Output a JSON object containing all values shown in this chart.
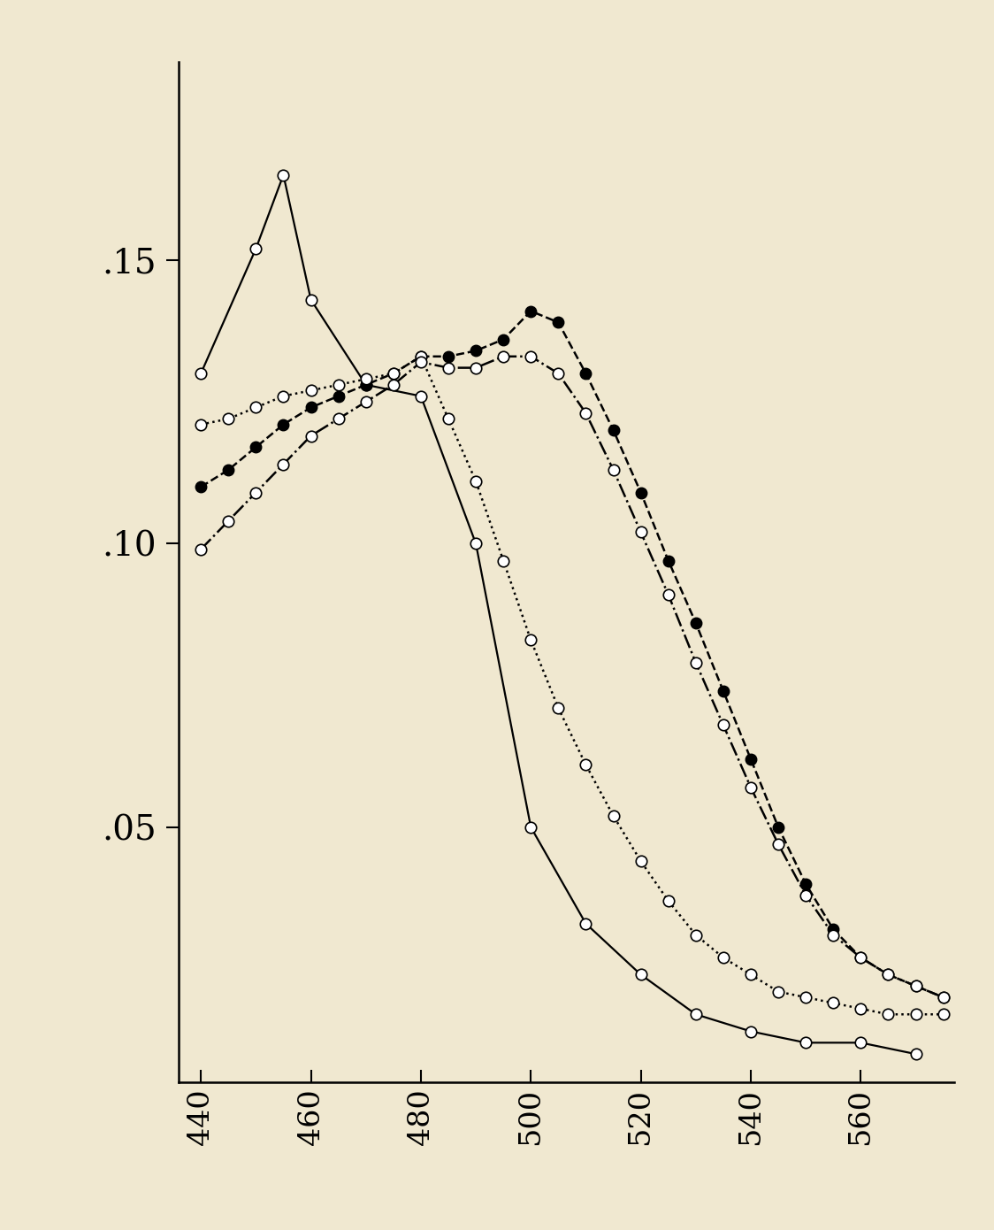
{
  "background_color": "#f0e8d0",
  "xlim": [
    436,
    577
  ],
  "ylim": [
    0.005,
    0.185
  ],
  "xticks": [
    440,
    460,
    480,
    500,
    520,
    540,
    560
  ],
  "yticks": [
    0.05,
    0.1,
    0.15
  ],
  "ytick_labels": [
    ".05",
    ".10",
    ".15"
  ],
  "curve1_x": [
    440,
    450,
    455,
    460,
    470,
    480,
    490,
    500,
    510,
    520,
    530,
    540,
    550,
    560,
    570
  ],
  "curve1_y": [
    0.13,
    0.152,
    0.165,
    0.143,
    0.128,
    0.126,
    0.1,
    0.05,
    0.033,
    0.024,
    0.017,
    0.014,
    0.012,
    0.012,
    0.01
  ],
  "curve2_x": [
    440,
    445,
    450,
    455,
    460,
    465,
    470,
    475,
    480,
    485,
    490,
    495,
    500,
    505,
    510,
    515,
    520,
    525,
    530,
    535,
    540,
    545,
    550,
    555,
    560,
    565,
    570,
    575
  ],
  "curve2_y": [
    0.121,
    0.122,
    0.124,
    0.126,
    0.127,
    0.128,
    0.129,
    0.13,
    0.133,
    0.122,
    0.111,
    0.097,
    0.083,
    0.071,
    0.061,
    0.052,
    0.044,
    0.037,
    0.031,
    0.027,
    0.024,
    0.021,
    0.02,
    0.019,
    0.018,
    0.017,
    0.017,
    0.017
  ],
  "curve3_x": [
    440,
    445,
    450,
    455,
    460,
    465,
    470,
    475,
    480,
    485,
    490,
    495,
    500,
    505,
    510,
    515,
    520,
    525,
    530,
    535,
    540,
    545,
    550,
    555,
    560,
    565,
    570,
    575
  ],
  "curve3_y": [
    0.11,
    0.113,
    0.117,
    0.121,
    0.124,
    0.126,
    0.128,
    0.13,
    0.133,
    0.133,
    0.134,
    0.136,
    0.141,
    0.139,
    0.13,
    0.12,
    0.109,
    0.097,
    0.086,
    0.074,
    0.062,
    0.05,
    0.04,
    0.032,
    0.027,
    0.024,
    0.022,
    0.02
  ],
  "curve4_x": [
    440,
    445,
    450,
    455,
    460,
    465,
    470,
    475,
    480,
    485,
    490,
    495,
    500,
    505,
    510,
    515,
    520,
    525,
    530,
    535,
    540,
    545,
    550,
    555,
    560,
    565,
    570,
    575
  ],
  "curve4_y": [
    0.099,
    0.104,
    0.109,
    0.114,
    0.119,
    0.122,
    0.125,
    0.128,
    0.132,
    0.131,
    0.131,
    0.133,
    0.133,
    0.13,
    0.123,
    0.113,
    0.102,
    0.091,
    0.079,
    0.068,
    0.057,
    0.047,
    0.038,
    0.031,
    0.027,
    0.024,
    0.022,
    0.02
  ],
  "markersize": 9,
  "linewidth_solid": 1.6,
  "linewidth_other": 1.8
}
